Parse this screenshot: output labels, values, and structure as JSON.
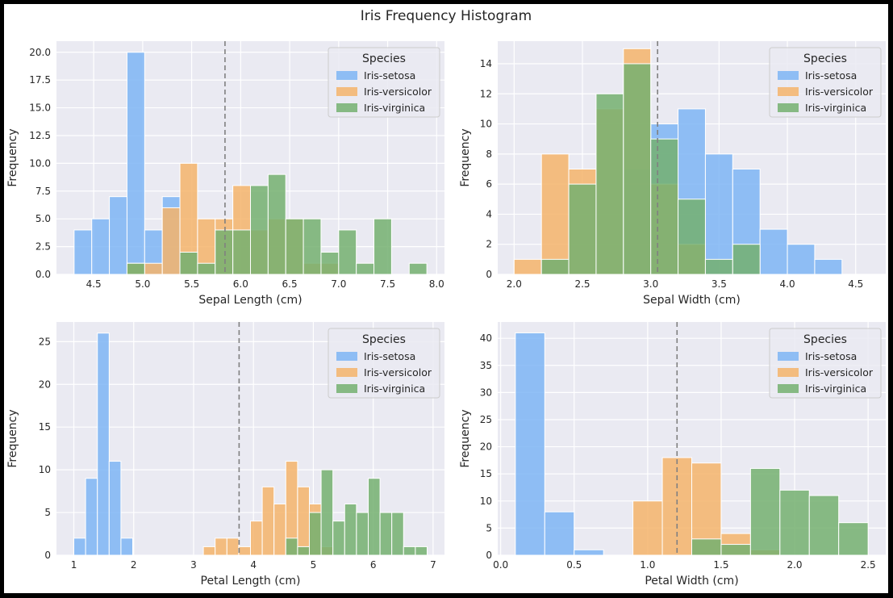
{
  "figure": {
    "suptitle": "Iris Frequency Histogram",
    "colors": {
      "Iris-setosa": "#7eb5f4",
      "Iris-versicolor": "#f4b46b",
      "Iris-virginica": "#74b070",
      "plot_bg": "#eaeaf2",
      "grid": "#ffffff",
      "mean_line": "#808080"
    }
  },
  "chart_data": [
    {
      "type": "bar",
      "title": "",
      "xlabel": "Sepal Length (cm)",
      "ylabel": "Frequency",
      "xlim": [
        4.12,
        8.08
      ],
      "ylim": [
        0,
        21
      ],
      "xticks": [
        "4.5",
        "5.0",
        "5.5",
        "6.0",
        "6.5",
        "7.0",
        "7.5",
        "8.0"
      ],
      "yticks": [
        "0.0",
        "2.5",
        "5.0",
        "7.5",
        "10.0",
        "12.5",
        "15.0",
        "17.5",
        "20.0"
      ],
      "bin_edges": [
        4.3,
        4.48,
        4.66,
        4.84,
        5.02,
        5.2,
        5.38,
        5.56,
        5.74,
        5.92,
        6.1,
        6.28,
        6.46,
        6.64,
        6.82,
        7.0,
        7.18,
        7.36,
        7.54,
        7.72,
        7.9
      ],
      "mean_line": 5.84,
      "legend": {
        "title": "Species",
        "position": "top-right"
      },
      "series": [
        {
          "name": "Iris-setosa",
          "values": [
            4,
            5,
            7,
            20,
            4,
            7,
            2,
            1,
            0,
            0,
            0,
            0,
            0,
            0,
            0,
            0,
            0,
            0,
            0,
            0
          ]
        },
        {
          "name": "Iris-versicolor",
          "values": [
            0,
            0,
            0,
            1,
            1,
            6,
            10,
            5,
            5,
            8,
            4,
            5,
            5,
            1,
            1,
            0,
            0,
            0,
            0,
            0
          ]
        },
        {
          "name": "Iris-virginica",
          "values": [
            0,
            0,
            0,
            1,
            0,
            0,
            2,
            1,
            4,
            4,
            8,
            9,
            5,
            5,
            2,
            4,
            1,
            5,
            0,
            1
          ]
        }
      ]
    },
    {
      "type": "bar",
      "title": "",
      "xlabel": "Sepal Width (cm)",
      "ylabel": "Frequency",
      "xlim": [
        1.88,
        4.72
      ],
      "ylim": [
        0,
        15.5
      ],
      "xticks": [
        "2.0",
        "2.5",
        "3.0",
        "3.5",
        "4.0",
        "4.5"
      ],
      "yticks": [
        "0",
        "2",
        "4",
        "6",
        "8",
        "10",
        "12",
        "14"
      ],
      "bin_edges": [
        2.0,
        2.2,
        2.4,
        2.6,
        2.8,
        3.0,
        3.2,
        3.4,
        3.6,
        3.8,
        4.0,
        4.2,
        4.4
      ],
      "mean_line": 3.05,
      "legend": {
        "title": "Species",
        "position": "top-right"
      },
      "series": [
        {
          "name": "Iris-setosa",
          "values": [
            0,
            1,
            0,
            0,
            7,
            10,
            11,
            8,
            7,
            3,
            2,
            1
          ]
        },
        {
          "name": "Iris-versicolor",
          "values": [
            1,
            8,
            7,
            11,
            15,
            6,
            2,
            0,
            0,
            0,
            0,
            0
          ]
        },
        {
          "name": "Iris-virginica",
          "values": [
            0,
            1,
            6,
            12,
            14,
            9,
            5,
            1,
            2,
            0,
            0,
            0
          ]
        }
      ]
    },
    {
      "type": "bar",
      "title": "",
      "xlabel": "Petal Length (cm)",
      "ylabel": "Frequency",
      "xlim": [
        0.71,
        7.19
      ],
      "ylim": [
        0,
        27.3
      ],
      "xticks": [
        "1",
        "2",
        "3",
        "4",
        "5",
        "6",
        "7"
      ],
      "yticks": [
        "0",
        "5",
        "10",
        "15",
        "20",
        "25"
      ],
      "bin_edges": [
        1.0,
        1.1967,
        1.3933,
        1.59,
        1.7867,
        1.9833,
        2.18,
        2.3767,
        2.5733,
        2.77,
        2.9667,
        3.1633,
        3.36,
        3.5567,
        3.7533,
        3.95,
        4.1467,
        4.3433,
        4.54,
        4.7367,
        4.9333,
        5.13,
        5.3267,
        5.5233,
        5.72,
        5.9167,
        6.1133,
        6.31,
        6.5067,
        6.7033,
        6.9
      ],
      "mean_line": 3.76,
      "legend": {
        "title": "Species",
        "position": "top-right"
      },
      "series": [
        {
          "name": "Iris-setosa",
          "values": [
            2,
            9,
            26,
            11,
            2,
            0,
            0,
            0,
            0,
            0,
            0,
            0,
            0,
            0,
            0,
            0,
            0,
            0,
            0,
            0,
            0,
            0,
            0,
            0,
            0,
            0,
            0,
            0,
            0,
            0
          ]
        },
        {
          "name": "Iris-versicolor",
          "values": [
            0,
            0,
            0,
            0,
            0,
            0,
            0,
            0,
            0,
            0,
            0,
            1,
            2,
            2,
            1,
            4,
            8,
            6,
            11,
            8,
            6,
            1,
            0,
            0,
            0,
            0,
            0,
            0,
            0,
            0
          ]
        },
        {
          "name": "Iris-virginica",
          "values": [
            0,
            0,
            0,
            0,
            0,
            0,
            0,
            0,
            0,
            0,
            0,
            0,
            0,
            0,
            0,
            0,
            0,
            0,
            2,
            1,
            5,
            10,
            4,
            6,
            5,
            9,
            5,
            5,
            1,
            1
          ]
        }
      ]
    },
    {
      "type": "bar",
      "title": "",
      "xlabel": "Petal Width (cm)",
      "ylabel": "Frequency",
      "xlim": [
        -0.02,
        2.62
      ],
      "ylim": [
        0,
        43
      ],
      "xticks": [
        "0.0",
        "0.5",
        "1.0",
        "1.5",
        "2.0",
        "2.5"
      ],
      "yticks": [
        "0",
        "5",
        "10",
        "15",
        "20",
        "25",
        "30",
        "35",
        "40"
      ],
      "bin_edges": [
        0.1,
        0.3,
        0.5,
        0.7,
        0.9,
        1.1,
        1.3,
        1.5,
        1.7,
        1.9,
        2.1,
        2.3,
        2.5
      ],
      "mean_line": 1.2,
      "legend": {
        "title": "Species",
        "position": "top-right"
      },
      "series": [
        {
          "name": "Iris-setosa",
          "values": [
            41,
            8,
            1,
            0,
            0,
            0,
            0,
            0,
            0,
            0,
            0,
            0
          ]
        },
        {
          "name": "Iris-versicolor",
          "values": [
            0,
            0,
            0,
            0,
            10,
            18,
            17,
            4,
            1,
            0,
            0,
            0
          ]
        },
        {
          "name": "Iris-virginica",
          "values": [
            0,
            0,
            0,
            0,
            0,
            0,
            3,
            2,
            16,
            12,
            11,
            6
          ]
        }
      ]
    }
  ]
}
